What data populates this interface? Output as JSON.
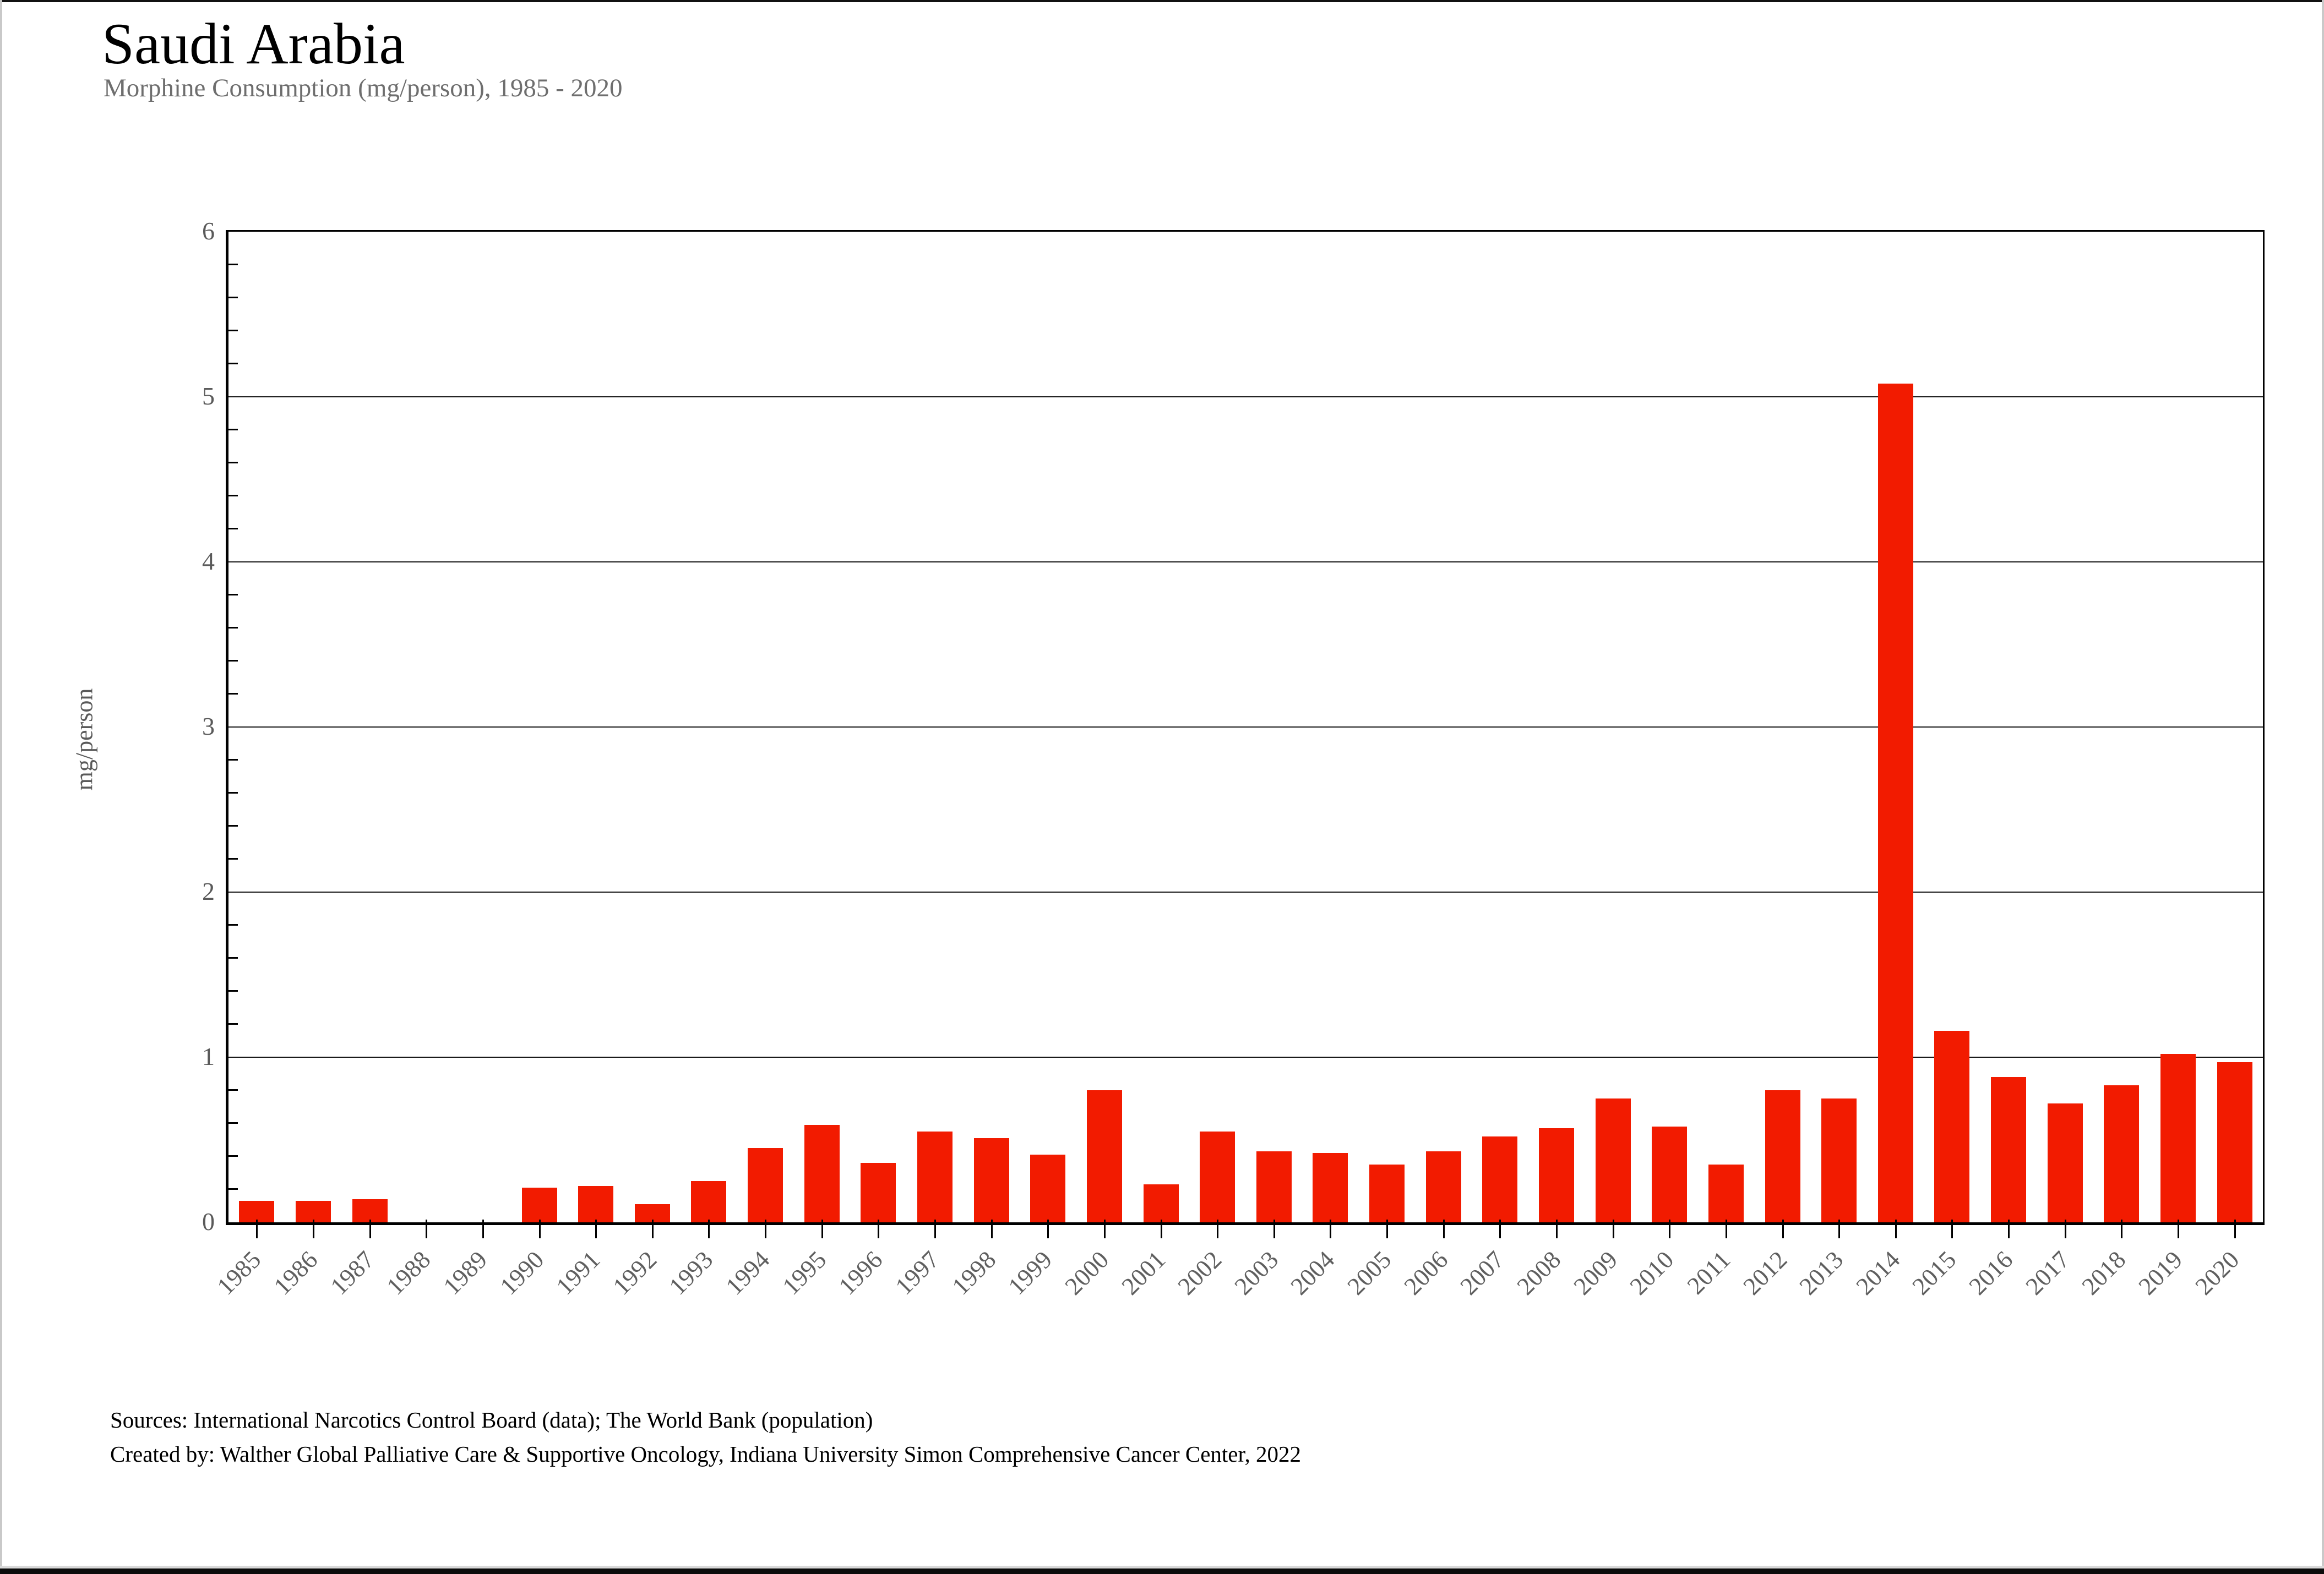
{
  "window": {
    "border_color": "#c9c9c9",
    "top_edge_color": "#111111",
    "bottom_strip_color": "#0b0b0b"
  },
  "chart_data": {
    "type": "bar",
    "title": "Saudi Arabia",
    "subtitle": "Morphine Consumption (mg/person), 1985 - 2020",
    "ylabel": "mg/person",
    "xlabel": "",
    "ylim": [
      0,
      6
    ],
    "ytick_interval": 1,
    "yticks": [
      0,
      1,
      2,
      3,
      4,
      5,
      6
    ],
    "minor_tick_interval": 0.2,
    "grid": "horizontal-major",
    "legend": "none",
    "bar_color": "#F21B00",
    "categories": [
      1985,
      1986,
      1987,
      1988,
      1989,
      1990,
      1991,
      1992,
      1993,
      1994,
      1995,
      1996,
      1997,
      1998,
      1999,
      2000,
      2001,
      2002,
      2003,
      2004,
      2005,
      2006,
      2007,
      2008,
      2009,
      2010,
      2011,
      2012,
      2013,
      2014,
      2015,
      2016,
      2017,
      2018,
      2019,
      2020
    ],
    "values": [
      0.13,
      0.13,
      0.14,
      0,
      0,
      0.21,
      0.22,
      0.11,
      0.25,
      0.45,
      0.59,
      0.36,
      0.55,
      0.51,
      0.41,
      0.8,
      0.23,
      0.55,
      0.43,
      0.42,
      0.35,
      0.43,
      0.52,
      0.57,
      0.75,
      0.58,
      0.35,
      0.8,
      0.75,
      5.08,
      1.16,
      0.88,
      0.72,
      0.83,
      1.02,
      0.97
    ]
  },
  "footer": {
    "sources_line": "Sources: International Narcotics Control Board (data); The World Bank (population)",
    "credit_line": "Created by: Walther  Global Palliative Care & Supportive Oncology, Indiana University Simon Comprehensive Cancer Center, 2022"
  }
}
